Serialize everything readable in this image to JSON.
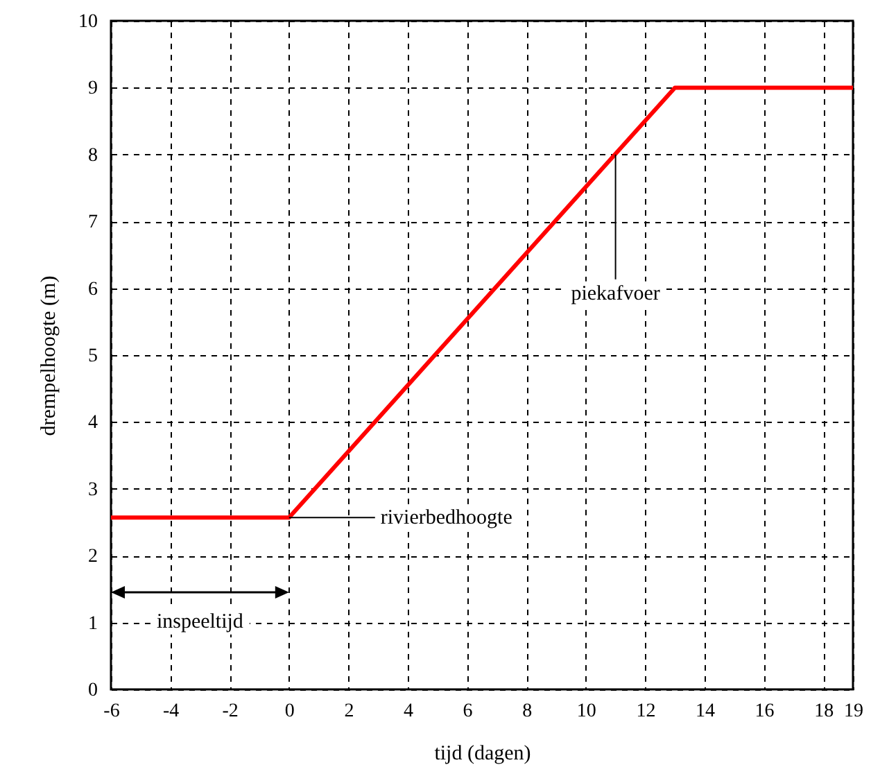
{
  "chart_data": {
    "type": "line",
    "xlabel": "tijd (dagen)",
    "ylabel": "drempelhoogte (m)",
    "x": [
      -6,
      0,
      13,
      19
    ],
    "series": [
      {
        "color": "#ff0000",
        "values": [
          2.57,
          2.57,
          9,
          9
        ]
      }
    ],
    "xlim": [
      -6,
      19
    ],
    "xticks": [
      -6,
      -4,
      -2,
      0,
      2,
      4,
      6,
      8,
      10,
      12,
      14,
      16,
      18,
      19
    ],
    "ylim": [
      0,
      10
    ],
    "yticks": [
      0,
      1,
      2,
      3,
      4,
      5,
      6,
      7,
      8,
      9,
      10
    ],
    "grid": true,
    "marker": "none",
    "line_style": "solid",
    "annotations": [
      {
        "text": "rivierbedhoogte",
        "x": 0,
        "y": 2.57
      },
      {
        "text": "piekafvoer",
        "x": 11,
        "y": 8
      },
      "inspeeltijd"
    ]
  }
}
